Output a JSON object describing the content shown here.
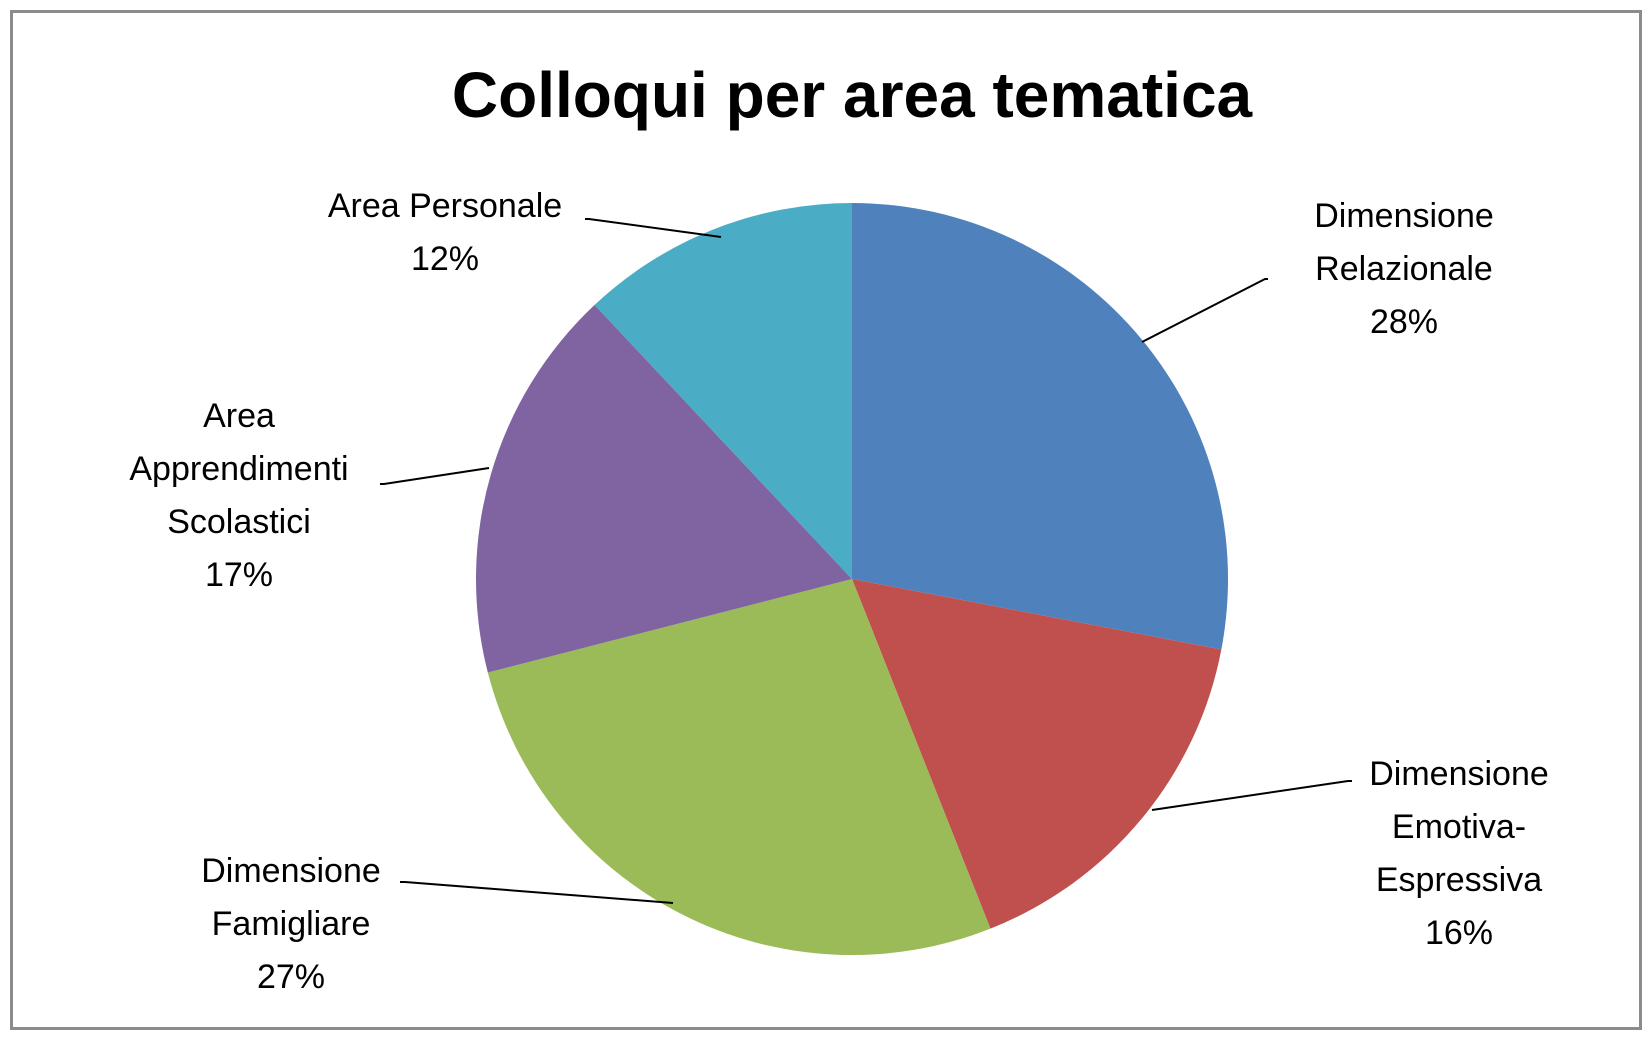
{
  "chart_data": {
    "type": "pie",
    "title": "Colloqui per area tematica",
    "categories": [
      "Dimensione Relazionale",
      "Dimensione Emotiva-Espressiva",
      "Dimensione Famigliare",
      "Area Apprendimenti Scolastici",
      "Area Personale"
    ],
    "values": [
      28,
      16,
      27,
      17,
      12
    ],
    "value_labels": [
      "28%",
      "16%",
      "27%",
      "17%",
      "12%"
    ],
    "colors": [
      "#4f81bd",
      "#c0504d",
      "#9bbb59",
      "#8064a2",
      "#4bacc6"
    ]
  }
}
